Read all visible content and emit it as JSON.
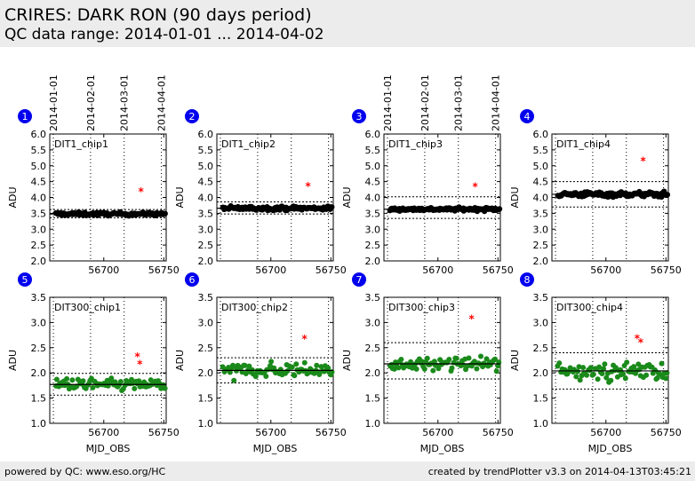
{
  "header": {
    "title": "CRIRES: DARK RON (90 days period)",
    "subtitle": "QC data range: 2014-01-01 ... 2014-04-02"
  },
  "footer": {
    "left": "powered by QC: www.eso.org/HC",
    "right": "created by trendPlotter v3.3 on 2014-04-13T03:45:21"
  },
  "date_axis": {
    "ticks": [
      {
        "label": "2014-01-01",
        "mjd": 56658
      },
      {
        "label": "2014-02-01",
        "mjd": 56689
      },
      {
        "label": "2014-03-01",
        "mjd": 56717
      },
      {
        "label": "2014-04-01",
        "mjd": 56748
      }
    ]
  },
  "colors": {
    "top_points": "#000000",
    "bottom_points": "#1a8a1a",
    "outliers": "#ff0000",
    "badge": "#0000ee"
  },
  "chart_data": [
    {
      "type": "scatter",
      "panel": "1",
      "label": "DIT1_chip1",
      "xlabel": "",
      "ylabel": "ADU",
      "xlim": [
        56655,
        56752
      ],
      "ylim": [
        2.0,
        6.0
      ],
      "yticks": [
        2.0,
        2.5,
        3.0,
        3.5,
        4.0,
        4.5,
        5.0,
        5.5,
        6.0
      ],
      "xticks": [
        56700,
        56750
      ],
      "median": 3.48,
      "limits": [
        3.36,
        3.62
      ],
      "scatter": 0.025,
      "marker_color": "black",
      "outliers": [
        {
          "x": 56731,
          "y": 4.18
        }
      ]
    },
    {
      "type": "scatter",
      "panel": "2",
      "label": "DIT1_chip2",
      "xlabel": "",
      "ylabel": "ADU",
      "xlim": [
        56655,
        56752
      ],
      "ylim": [
        2.0,
        6.0
      ],
      "yticks": [
        2.0,
        2.5,
        3.0,
        3.5,
        4.0,
        4.5,
        5.0,
        5.5,
        6.0
      ],
      "xticks": [
        56700,
        56750
      ],
      "median": 3.66,
      "limits": [
        3.48,
        3.86
      ],
      "scatter": 0.03,
      "marker_color": "black",
      "outliers": [
        {
          "x": 56731,
          "y": 4.35
        }
      ]
    },
    {
      "type": "scatter",
      "panel": "3",
      "label": "DIT1_chip3",
      "xlabel": "",
      "ylabel": "ADU",
      "xlim": [
        56655,
        56752
      ],
      "ylim": [
        2.0,
        6.0
      ],
      "yticks": [
        2.0,
        2.5,
        3.0,
        3.5,
        4.0,
        4.5,
        5.0,
        5.5,
        6.0
      ],
      "xticks": [
        56700,
        56750
      ],
      "median": 3.63,
      "limits": [
        3.34,
        4.02
      ],
      "scatter": 0.025,
      "marker_color": "black",
      "outliers": [
        {
          "x": 56731,
          "y": 4.33
        }
      ]
    },
    {
      "type": "scatter",
      "panel": "4",
      "label": "DIT1_chip4",
      "xlabel": "",
      "ylabel": "ADU",
      "xlim": [
        56655,
        56752
      ],
      "ylim": [
        2.0,
        6.0
      ],
      "yticks": [
        2.0,
        2.5,
        3.0,
        3.5,
        4.0,
        4.5,
        5.0,
        5.5,
        6.0
      ],
      "xticks": [
        56700,
        56750
      ],
      "median": 4.1,
      "limits": [
        3.7,
        4.5
      ],
      "scatter": 0.04,
      "marker_color": "black",
      "outliers": [
        {
          "x": 56731,
          "y": 5.15
        }
      ]
    },
    {
      "type": "scatter",
      "panel": "5",
      "label": "DIT300_chip1",
      "xlabel": "MJD_OBS",
      "ylabel": "ADU",
      "xlim": [
        56655,
        56752
      ],
      "ylim": [
        1.0,
        3.5
      ],
      "yticks": [
        1.0,
        1.5,
        2.0,
        2.5,
        3.0,
        3.5
      ],
      "xticks": [
        56700,
        56750
      ],
      "median": 1.77,
      "limits": [
        1.56,
        1.99
      ],
      "scatter": 0.06,
      "marker_color": "green",
      "outliers": [
        {
          "x": 56728,
          "y": 2.32
        },
        {
          "x": 56730,
          "y": 2.17
        }
      ]
    },
    {
      "type": "scatter",
      "panel": "6",
      "label": "DIT300_chip2",
      "xlabel": "MJD_OBS",
      "ylabel": "ADU",
      "xlim": [
        56655,
        56752
      ],
      "ylim": [
        1.0,
        3.5
      ],
      "yticks": [
        1.0,
        1.5,
        2.0,
        2.5,
        3.0,
        3.5
      ],
      "xticks": [
        56700,
        56750
      ],
      "median": 2.05,
      "limits": [
        1.8,
        2.3
      ],
      "scatter": 0.07,
      "marker_color": "green",
      "outliers": [
        {
          "x": 56728,
          "y": 2.67
        }
      ]
    },
    {
      "type": "scatter",
      "panel": "7",
      "label": "DIT300_chip3",
      "xlabel": "MJD_OBS",
      "ylabel": "ADU",
      "xlim": [
        56655,
        56752
      ],
      "ylim": [
        1.0,
        3.5
      ],
      "yticks": [
        1.0,
        1.5,
        2.0,
        2.5,
        3.0,
        3.5
      ],
      "xticks": [
        56700,
        56750
      ],
      "median": 2.18,
      "limits": [
        1.88,
        2.6
      ],
      "scatter": 0.06,
      "marker_color": "green",
      "outliers": [
        {
          "x": 56728,
          "y": 3.07
        }
      ]
    },
    {
      "type": "scatter",
      "panel": "8",
      "label": "DIT300_chip4",
      "xlabel": "MJD_OBS",
      "ylabel": "ADU",
      "xlim": [
        56655,
        56752
      ],
      "ylim": [
        1.0,
        3.5
      ],
      "yticks": [
        1.0,
        1.5,
        2.0,
        2.5,
        3.0,
        3.5
      ],
      "xticks": [
        56700,
        56750
      ],
      "median": 2.04,
      "limits": [
        1.68,
        2.4
      ],
      "scatter": 0.08,
      "marker_color": "green",
      "outliers": [
        {
          "x": 56726,
          "y": 2.68
        },
        {
          "x": 56729,
          "y": 2.6
        }
      ]
    }
  ]
}
